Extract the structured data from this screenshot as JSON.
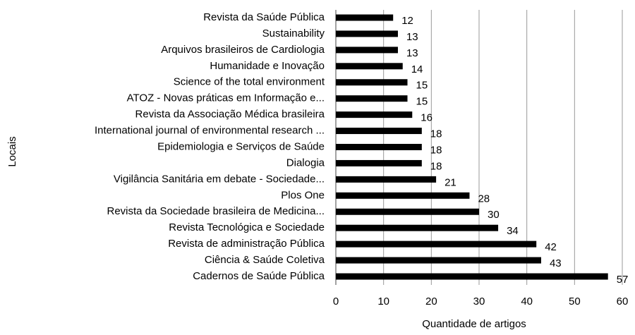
{
  "chart_data": {
    "type": "bar",
    "orientation": "horizontal",
    "xlabel": "Quantidade  de artigos",
    "ylabel": "Locais",
    "categories": [
      "Revista da Saúde Pública",
      "Sustainability",
      "Arquivos brasileiros de Cardiologia",
      "Humanidade e Inovação",
      "Science of the total environment",
      "ATOZ - Novas práticas em Informação e...",
      "Revista da Associação Médica brasileira",
      "International journal of environmental research ...",
      "Epidemiologia e Serviços de Saúde",
      "Dialogia",
      "Vigilância Sanitária em debate - Sociedade...",
      "Plos One",
      "Revista da Sociedade brasileira de Medicina...",
      "Revista Tecnológica e Sociedade",
      "Revista de administração Pública",
      "Ciência & Saúde Coletiva",
      "Cadernos de Saúde Pública"
    ],
    "values": [
      12,
      13,
      13,
      14,
      15,
      15,
      16,
      18,
      18,
      18,
      21,
      28,
      30,
      34,
      42,
      43,
      57
    ],
    "color": "#000000",
    "xlim": [
      0,
      60
    ],
    "xticks": [
      0,
      10,
      20,
      30,
      40,
      50,
      60
    ],
    "grid": true
  }
}
